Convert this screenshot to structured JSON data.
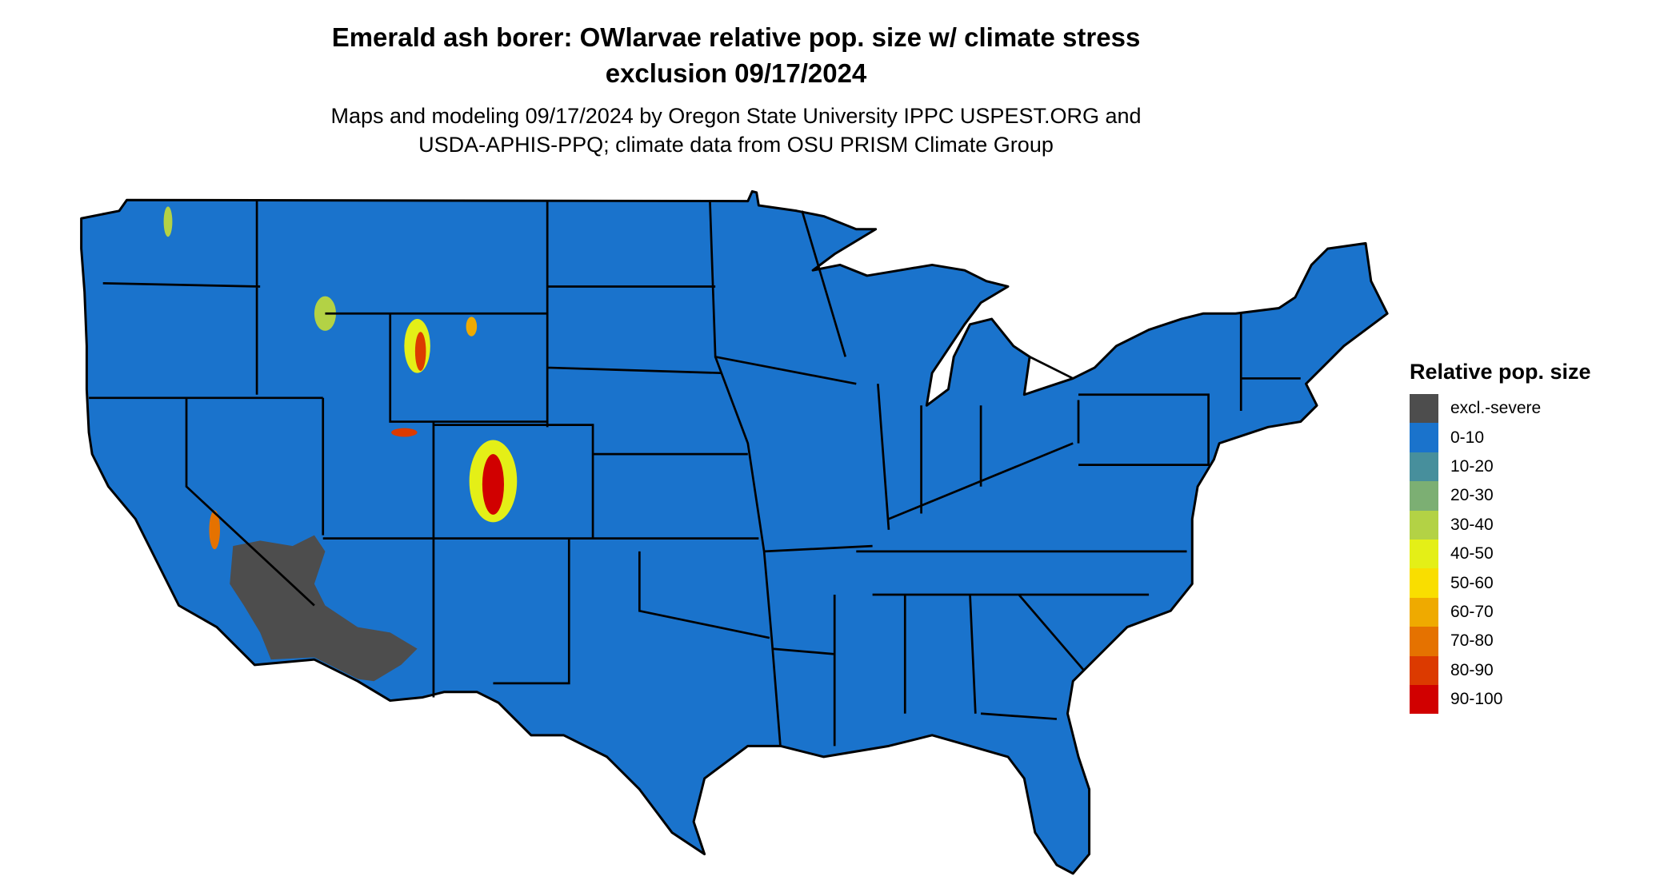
{
  "title_line1": "Emerald ash borer: OWlarvae relative pop. size w/ climate stress",
  "title_line2": "exclusion 09/17/2024",
  "subtitle_line1": "Maps and modeling 09/17/2024 by Oregon State University IPPC USPEST.ORG and",
  "subtitle_line2": "USDA-APHIS-PPQ; climate data from OSU PRISM Climate Group",
  "map": {
    "region": "Contiguous United States",
    "dominant_class": "0-10",
    "excluded_region_class": "excl.-severe",
    "colors": {
      "land": "#1a73cc",
      "border": "#000000",
      "excluded": "#4d4d4d"
    }
  },
  "legend": {
    "title": "Relative pop. size",
    "items": [
      {
        "label": "excl.-severe",
        "color": "#4d4d4d"
      },
      {
        "label": "0-10",
        "color": "#1a73cc"
      },
      {
        "label": "10-20",
        "color": "#478f9c"
      },
      {
        "label": "20-30",
        "color": "#7caf73"
      },
      {
        "label": "30-40",
        "color": "#b3d245"
      },
      {
        "label": "40-50",
        "color": "#e4ef17"
      },
      {
        "label": "50-60",
        "color": "#f9de00"
      },
      {
        "label": "60-70",
        "color": "#efaa00"
      },
      {
        "label": "70-80",
        "color": "#e57200"
      },
      {
        "label": "80-90",
        "color": "#dc3a00"
      },
      {
        "label": "90-100",
        "color": "#d10000"
      }
    ]
  }
}
